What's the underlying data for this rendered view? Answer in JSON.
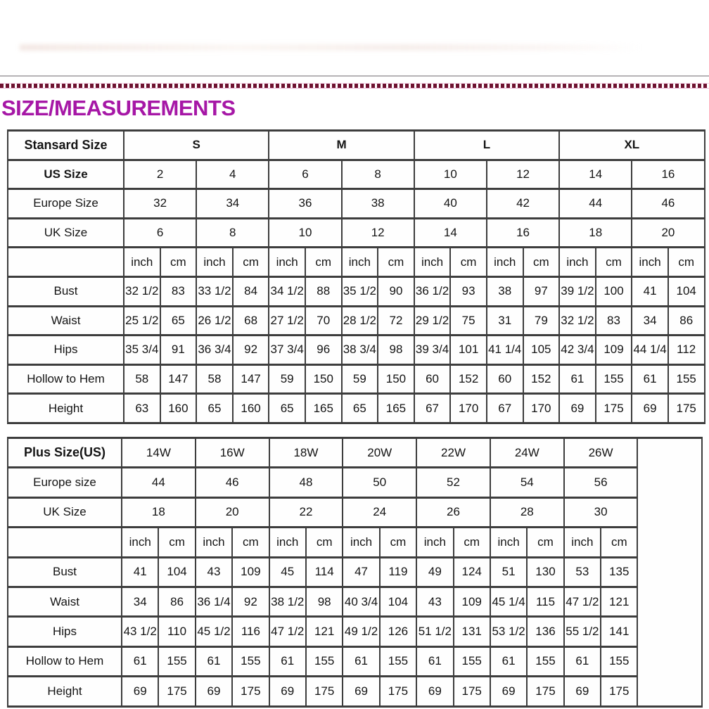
{
  "page": {
    "title": "SIZE/MEASUREMENTS",
    "title_color": "#a617a6",
    "dashed_divider_color": "#6e1230",
    "divider_line_color": "#b6b3b6",
    "border_color": "#3d3d3d",
    "text_color": "#141414"
  },
  "standard_table": {
    "name_header": "Stansard Size",
    "size_groups": [
      "S",
      "M",
      "L",
      "XL"
    ],
    "size_groups_bold": true,
    "rows_header": [
      {
        "label": "US Size",
        "bold": true,
        "values": [
          "2",
          "4",
          "6",
          "8",
          "10",
          "12",
          "14",
          "16"
        ]
      },
      {
        "label": "Europe Size",
        "bold": false,
        "values": [
          "32",
          "34",
          "36",
          "38",
          "40",
          "42",
          "44",
          "46"
        ]
      },
      {
        "label": "UK Size",
        "bold": false,
        "values": [
          "6",
          "8",
          "10",
          "12",
          "14",
          "16",
          "18",
          "20"
        ]
      }
    ],
    "unit_labels": [
      "inch",
      "cm"
    ],
    "measure_rows": [
      {
        "label": "Bust",
        "values": [
          "32 1/2",
          "83",
          "33 1/2",
          "84",
          "34 1/2",
          "88",
          "35 1/2",
          "90",
          "36 1/2",
          "93",
          "38",
          "97",
          "39 1/2",
          "100",
          "41",
          "104"
        ]
      },
      {
        "label": "Waist",
        "values": [
          "25 1/2",
          "65",
          "26 1/2",
          "68",
          "27 1/2",
          "70",
          "28 1/2",
          "72",
          "29 1/2",
          "75",
          "31",
          "79",
          "32 1/2",
          "83",
          "34",
          "86"
        ]
      },
      {
        "label": "Hips",
        "values": [
          "35 3/4",
          "91",
          "36 3/4",
          "92",
          "37 3/4",
          "96",
          "38 3/4",
          "98",
          "39 3/4",
          "101",
          "41 1/4",
          "105",
          "42 3/4",
          "109",
          "44 1/4",
          "112"
        ]
      },
      {
        "label": "Hollow to Hem",
        "values": [
          "58",
          "147",
          "58",
          "147",
          "59",
          "150",
          "59",
          "150",
          "60",
          "152",
          "60",
          "152",
          "61",
          "155",
          "61",
          "155"
        ]
      },
      {
        "label": "Height",
        "values": [
          "63",
          "160",
          "65",
          "160",
          "65",
          "165",
          "65",
          "165",
          "67",
          "170",
          "67",
          "170",
          "69",
          "175",
          "69",
          "175"
        ]
      }
    ]
  },
  "plus_table": {
    "name_header": "Plus Size(US)",
    "size_groups": [
      "14W",
      "16W",
      "18W",
      "20W",
      "22W",
      "24W",
      "26W"
    ],
    "size_groups_bold": false,
    "has_trailing_empty_column": true,
    "rows_header": [
      {
        "label": "Europe size",
        "bold": false,
        "values": [
          "44",
          "46",
          "48",
          "50",
          "52",
          "54",
          "56"
        ]
      },
      {
        "label": "UK Size",
        "bold": false,
        "values": [
          "18",
          "20",
          "22",
          "24",
          "26",
          "28",
          "30"
        ]
      }
    ],
    "unit_labels": [
      "inch",
      "cm"
    ],
    "measure_rows": [
      {
        "label": "Bust",
        "values": [
          "41",
          "104",
          "43",
          "109",
          "45",
          "114",
          "47",
          "119",
          "49",
          "124",
          "51",
          "130",
          "53",
          "135"
        ]
      },
      {
        "label": "Waist",
        "values": [
          "34",
          "86",
          "36 1/4",
          "92",
          "38 1/2",
          "98",
          "40 3/4",
          "104",
          "43",
          "109",
          "45 1/4",
          "115",
          "47 1/2",
          "121"
        ]
      },
      {
        "label": "Hips",
        "values": [
          "43 1/2",
          "110",
          "45 1/2",
          "116",
          "47 1/2",
          "121",
          "49 1/2",
          "126",
          "51 1/2",
          "131",
          "53 1/2",
          "136",
          "55 1/2",
          "141"
        ]
      },
      {
        "label": "Hollow to Hem",
        "values": [
          "61",
          "155",
          "61",
          "155",
          "61",
          "155",
          "61",
          "155",
          "61",
          "155",
          "61",
          "155",
          "61",
          "155"
        ]
      },
      {
        "label": "Height",
        "values": [
          "69",
          "175",
          "69",
          "175",
          "69",
          "175",
          "69",
          "175",
          "69",
          "175",
          "69",
          "175",
          "69",
          "175"
        ]
      }
    ]
  }
}
